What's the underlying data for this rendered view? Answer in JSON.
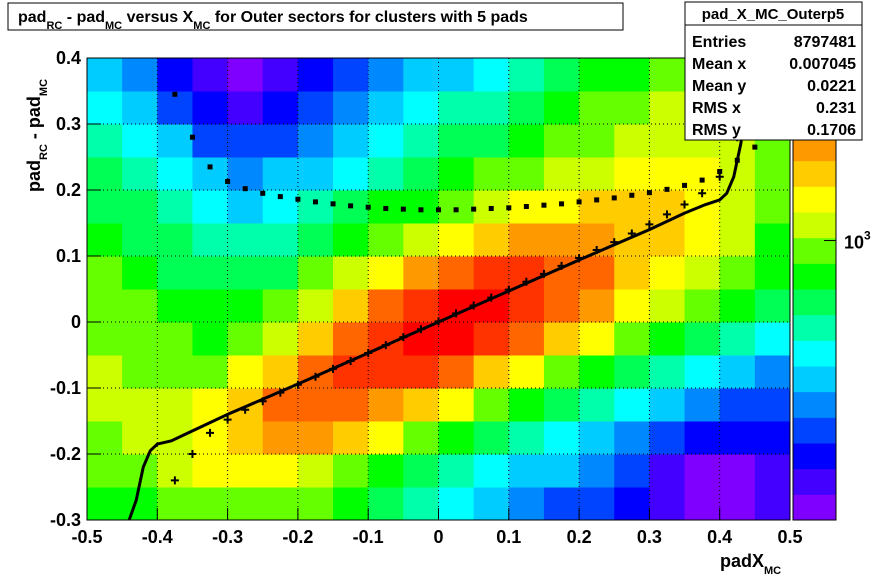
{
  "chart_data": {
    "type": "heatmap",
    "title": {
      "segments": [
        {
          "text": "pad",
          "sub": false
        },
        {
          "text": "RC",
          "sub": true
        },
        {
          "text": " - pad",
          "sub": false
        },
        {
          "text": "MC",
          "sub": true
        },
        {
          "text": " versus X",
          "sub": false
        },
        {
          "text": "MC",
          "sub": true
        },
        {
          "text": " for Outer sectors for clusters with 5 pads",
          "sub": false
        }
      ]
    },
    "x_label": {
      "segments": [
        {
          "text": "padX",
          "sub": false
        },
        {
          "text": "MC",
          "sub": true
        }
      ]
    },
    "y_label": {
      "segments": [
        {
          "text": "pad",
          "sub": false
        },
        {
          "text": "RC",
          "sub": true
        },
        {
          "text": " - pad",
          "sub": false
        },
        {
          "text": "MC",
          "sub": true
        }
      ]
    },
    "xlim": [
      -0.5,
      0.5
    ],
    "ylim": [
      -0.3,
      0.4
    ],
    "xticks": [
      -0.5,
      -0.4,
      -0.3,
      -0.2,
      -0.1,
      0,
      0.1,
      0.2,
      0.3,
      0.4,
      0.5
    ],
    "yticks": [
      -0.3,
      -0.2,
      -0.1,
      0,
      0.1,
      0.2,
      0.3,
      0.4
    ],
    "grid": true,
    "zlim": [
      100,
      4500
    ],
    "zlog": true,
    "zticks": [
      {
        "value": 1000,
        "label": "10",
        "exponent": "3"
      }
    ],
    "palette": [
      "#7f00ff",
      "#4400ff",
      "#0000ff",
      "#0044ff",
      "#0088ff",
      "#00ccff",
      "#00ffff",
      "#00ffaa",
      "#00ff55",
      "#00ff00",
      "#66ff00",
      "#ccff00",
      "#ffff00",
      "#ffcc00",
      "#ff9900",
      "#ff6600",
      "#ff3300",
      "#ff0000"
    ],
    "xbins": [
      -0.5,
      -0.45,
      -0.4,
      -0.35,
      -0.3,
      -0.25,
      -0.2,
      -0.15,
      -0.1,
      -0.05,
      0,
      0.05,
      0.1,
      0.15,
      0.2,
      0.25,
      0.3,
      0.35,
      0.4,
      0.45,
      0.5
    ],
    "ybins": [
      -0.3,
      -0.25,
      -0.2,
      -0.15,
      -0.1,
      -0.05,
      0,
      0.05,
      0.1,
      0.15,
      0.2,
      0.25,
      0.3,
      0.35,
      0.4
    ],
    "z": [
      [
        700,
        800,
        900,
        1000,
        1000,
        950,
        850,
        700,
        560,
        460,
        380,
        320,
        270,
        230,
        200,
        160,
        130,
        110,
        110,
        140
      ],
      [
        850,
        950,
        1100,
        1300,
        1400,
        1400,
        1250,
        1000,
        800,
        650,
        520,
        420,
        350,
        290,
        240,
        190,
        150,
        120,
        120,
        150
      ],
      [
        1000,
        1050,
        1200,
        1500,
        1900,
        2100,
        2000,
        1700,
        1300,
        1000,
        800,
        650,
        520,
        420,
        340,
        270,
        210,
        170,
        160,
        170
      ],
      [
        1100,
        1050,
        1100,
        1300,
        1800,
        2400,
        2900,
        2800,
        2300,
        1800,
        1300,
        1000,
        800,
        650,
        500,
        400,
        320,
        260,
        220,
        200
      ],
      [
        1050,
        1000,
        950,
        1000,
        1300,
        1800,
        2600,
        3300,
        3500,
        3000,
        2400,
        1800,
        1300,
        1000,
        800,
        650,
        500,
        400,
        330,
        280
      ],
      [
        1000,
        900,
        850,
        820,
        900,
        1200,
        1800,
        2600,
        3400,
        3900,
        3700,
        3100,
        2400,
        1800,
        1350,
        1000,
        800,
        650,
        500,
        400
      ],
      [
        950,
        850,
        750,
        700,
        700,
        850,
        1200,
        1700,
        2400,
        3200,
        3800,
        3800,
        3300,
        2600,
        2000,
        1500,
        1150,
        900,
        700,
        550
      ],
      [
        850,
        750,
        650,
        580,
        560,
        650,
        850,
        1100,
        1500,
        2000,
        2600,
        3000,
        3200,
        2900,
        2400,
        1900,
        1500,
        1150,
        900,
        700
      ],
      [
        750,
        650,
        560,
        480,
        450,
        500,
        600,
        750,
        950,
        1200,
        1500,
        1800,
        2100,
        2300,
        2200,
        1900,
        1600,
        1300,
        1050,
        800
      ],
      [
        650,
        550,
        460,
        380,
        350,
        380,
        450,
        550,
        680,
        800,
        950,
        1100,
        1300,
        1500,
        1700,
        1700,
        1600,
        1400,
        1150,
        900
      ],
      [
        550,
        460,
        380,
        300,
        270,
        290,
        340,
        420,
        520,
        620,
        720,
        850,
        950,
        1100,
        1250,
        1350,
        1400,
        1350,
        1150,
        900
      ],
      [
        450,
        380,
        300,
        230,
        200,
        210,
        250,
        320,
        400,
        480,
        560,
        650,
        750,
        880,
        1000,
        1100,
        1200,
        1250,
        1100,
        850
      ],
      [
        380,
        300,
        220,
        170,
        150,
        160,
        190,
        240,
        300,
        380,
        450,
        520,
        620,
        720,
        850,
        950,
        1050,
        1150,
        1000,
        800
      ],
      [
        300,
        250,
        180,
        140,
        120,
        130,
        160,
        200,
        250,
        300,
        350,
        420,
        500,
        600,
        700,
        800,
        900,
        1000,
        900,
        700
      ]
    ],
    "series": [
      {
        "style": "squares",
        "color": "#000000",
        "x": [
          -0.375,
          -0.35,
          -0.325,
          -0.3,
          -0.275,
          -0.25,
          -0.225,
          -0.2,
          -0.175,
          -0.15,
          -0.125,
          -0.1,
          -0.075,
          -0.05,
          -0.025,
          0,
          0.025,
          0.05,
          0.075,
          0.1,
          0.125,
          0.15,
          0.175,
          0.2,
          0.225,
          0.25,
          0.275,
          0.3,
          0.325,
          0.35,
          0.375,
          0.4,
          0.425,
          0.45
        ],
        "values": [
          0.345,
          0.28,
          0.235,
          0.213,
          0.202,
          0.195,
          0.19,
          0.186,
          0.182,
          0.179,
          0.176,
          0.174,
          0.172,
          0.171,
          0.17,
          0.17,
          0.17,
          0.171,
          0.172,
          0.173,
          0.175,
          0.177,
          0.179,
          0.182,
          0.185,
          0.188,
          0.192,
          0.196,
          0.201,
          0.207,
          0.215,
          0.228,
          0.245,
          0.265
        ]
      },
      {
        "style": "crosses",
        "color": "#000000",
        "x": [
          -0.375,
          -0.35,
          -0.325,
          -0.3,
          -0.275,
          -0.25,
          -0.225,
          -0.2,
          -0.175,
          -0.15,
          -0.125,
          -0.1,
          -0.075,
          -0.05,
          -0.025,
          0,
          0.025,
          0.05,
          0.075,
          0.1,
          0.125,
          0.15,
          0.175,
          0.2,
          0.225,
          0.25,
          0.275,
          0.3,
          0.325,
          0.35,
          0.375,
          0.4,
          0.425,
          0.45
        ],
        "values": [
          -0.24,
          -0.2,
          -0.168,
          -0.148,
          -0.133,
          -0.12,
          -0.107,
          -0.095,
          -0.083,
          -0.071,
          -0.059,
          -0.047,
          -0.035,
          -0.023,
          -0.011,
          0.001,
          0.013,
          0.025,
          0.037,
          0.049,
          0.061,
          0.073,
          0.085,
          0.097,
          0.109,
          0.121,
          0.134,
          0.148,
          0.163,
          0.178,
          0.195,
          0.22,
          0.28,
          0.36
        ]
      },
      {
        "style": "line",
        "color": "#000000",
        "x": [
          -0.44,
          -0.43,
          -0.42,
          -0.41,
          -0.4,
          -0.38,
          -0.35,
          -0.3,
          -0.2,
          -0.1,
          0,
          0.1,
          0.2,
          0.3,
          0.35,
          0.38,
          0.4,
          0.41,
          0.42,
          0.43,
          0.44,
          0.45
        ],
        "values": [
          -0.3,
          -0.27,
          -0.22,
          -0.195,
          -0.185,
          -0.18,
          -0.165,
          -0.14,
          -0.094,
          -0.047,
          0,
          0.047,
          0.094,
          0.14,
          0.165,
          0.178,
          0.185,
          0.195,
          0.22,
          0.27,
          0.35,
          0.4
        ]
      }
    ],
    "stats": {
      "name": "pad_X_MC_Outerp5",
      "rows": [
        {
          "label": "Entries",
          "value": 8797481
        },
        {
          "label": "Mean x",
          "value": 0.007045
        },
        {
          "label": "Mean y",
          "value": 0.0221
        },
        {
          "label": "RMS x",
          "value": 0.231
        },
        {
          "label": "RMS y",
          "value": 0.1706
        }
      ]
    }
  }
}
